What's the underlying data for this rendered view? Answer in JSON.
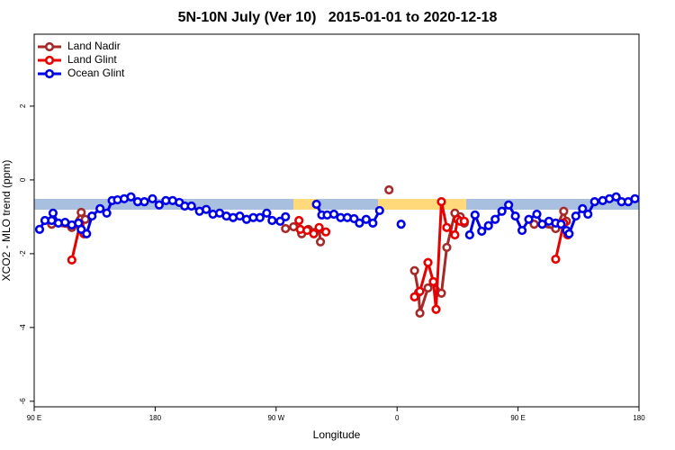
{
  "chart_data": {
    "type": "line",
    "title": "5N-10N July (Ver 10)   2015-01-01 to 2020-12-18",
    "x_label": "Longitude",
    "y_label": "XCO2 - MLO trend (ppm)",
    "xlim": [
      90,
      540
    ],
    "ylim": [
      -6.15,
      3.95
    ],
    "xticks": [
      {
        "value": 90,
        "label": "90 E"
      },
      180,
      {
        "value": 270,
        "label": "90 W"
      },
      {
        "value": 360,
        "label": "0"
      },
      {
        "value": 450,
        "label": "90 E"
      },
      {
        "value": 540,
        "label": "180"
      }
    ],
    "yticks": [
      -6,
      -4,
      -2,
      0,
      2
    ],
    "legend": "top-left",
    "series": [
      {
        "name": "Land Nadir",
        "color": "#a52a2a",
        "x": [
          103,
          118,
          125,
          128,
          200,
          277,
          283,
          289,
          294,
          302,
          303,
          330,
          354,
          356,
          373,
          376,
          377,
          383,
          387,
          393,
          397,
          403,
          407,
          410,
          450,
          462,
          478,
          484,
          486
        ],
        "values": [
          -1.2,
          -1.29,
          -0.88,
          -1.07,
          null,
          -1.32,
          -1.27,
          -1.46,
          -1.34,
          -1.34,
          -1.68,
          null,
          -0.27,
          null,
          -2.46,
          -3.05,
          -3.61,
          -2.93,
          -2.76,
          -3.07,
          -1.83,
          -0.9,
          -1.0,
          -1.17,
          null,
          -1.2,
          -1.32,
          -0.85,
          -1.12
        ]
      },
      {
        "name": "Land Glint",
        "color": "#e60000",
        "x": [
          118,
          124,
          127,
          200,
          287,
          288,
          293,
          298,
          302,
          307,
          330,
          373,
          377,
          383,
          387,
          389,
          393,
          397,
          403,
          405,
          407,
          410,
          450,
          478,
          484,
          487
        ],
        "values": [
          -2.17,
          -1.22,
          -1.46,
          null,
          -1.1,
          -1.34,
          -1.37,
          -1.46,
          -1.29,
          -1.41,
          null,
          -3.17,
          -3.02,
          -2.24,
          -2.76,
          -3.51,
          -0.59,
          -1.29,
          -1.49,
          -1.07,
          -1.12,
          -1.12,
          null,
          -2.15,
          -1.17,
          -1.49
        ]
      },
      {
        "name": "Ocean Glint",
        "color": "#0000e6",
        "x": [
          94,
          98,
          103,
          104,
          108,
          113,
          118,
          123,
          125,
          129,
          133,
          139,
          144,
          148,
          152,
          157,
          162,
          167,
          172,
          178,
          183,
          188,
          193,
          198,
          202,
          207,
          213,
          218,
          223,
          228,
          233,
          238,
          243,
          248,
          253,
          258,
          263,
          267,
          273,
          277,
          290,
          300,
          304,
          308,
          313,
          318,
          323,
          328,
          332,
          337,
          342,
          347,
          355,
          363,
          380,
          414,
          418,
          423,
          428,
          433,
          438,
          443,
          448,
          453,
          458,
          464,
          468,
          473,
          478,
          482,
          486,
          488,
          493,
          498,
          502,
          507,
          513,
          518,
          523,
          527,
          532,
          537
        ],
        "values": [
          -1.34,
          -1.1,
          -1.1,
          -0.9,
          -1.17,
          -1.15,
          -1.22,
          -1.17,
          -1.34,
          -1.46,
          -0.98,
          -0.78,
          -0.9,
          -0.56,
          -0.54,
          -0.51,
          -0.46,
          -0.59,
          -0.59,
          -0.51,
          -0.68,
          -0.56,
          -0.56,
          -0.61,
          -0.71,
          -0.71,
          -0.85,
          -0.8,
          -0.93,
          -0.9,
          -0.98,
          -1.02,
          -0.98,
          -1.07,
          -1.02,
          -1.02,
          -0.9,
          -1.1,
          -1.12,
          -1.0,
          null,
          -0.66,
          -0.95,
          -0.95,
          -0.93,
          -1.02,
          -1.02,
          -1.05,
          -1.17,
          -1.07,
          -1.17,
          -0.83,
          null,
          -1.2,
          null,
          -1.49,
          -0.95,
          -1.39,
          -1.24,
          -1.07,
          -0.85,
          -0.68,
          -0.98,
          -1.37,
          -1.07,
          -0.93,
          -1.2,
          -1.12,
          -1.17,
          -1.2,
          -1.37,
          -1.46,
          -0.98,
          -0.78,
          -0.93,
          -0.59,
          -0.56,
          -0.51,
          -0.46,
          -0.59,
          -0.59,
          -0.51
        ]
      }
    ]
  }
}
